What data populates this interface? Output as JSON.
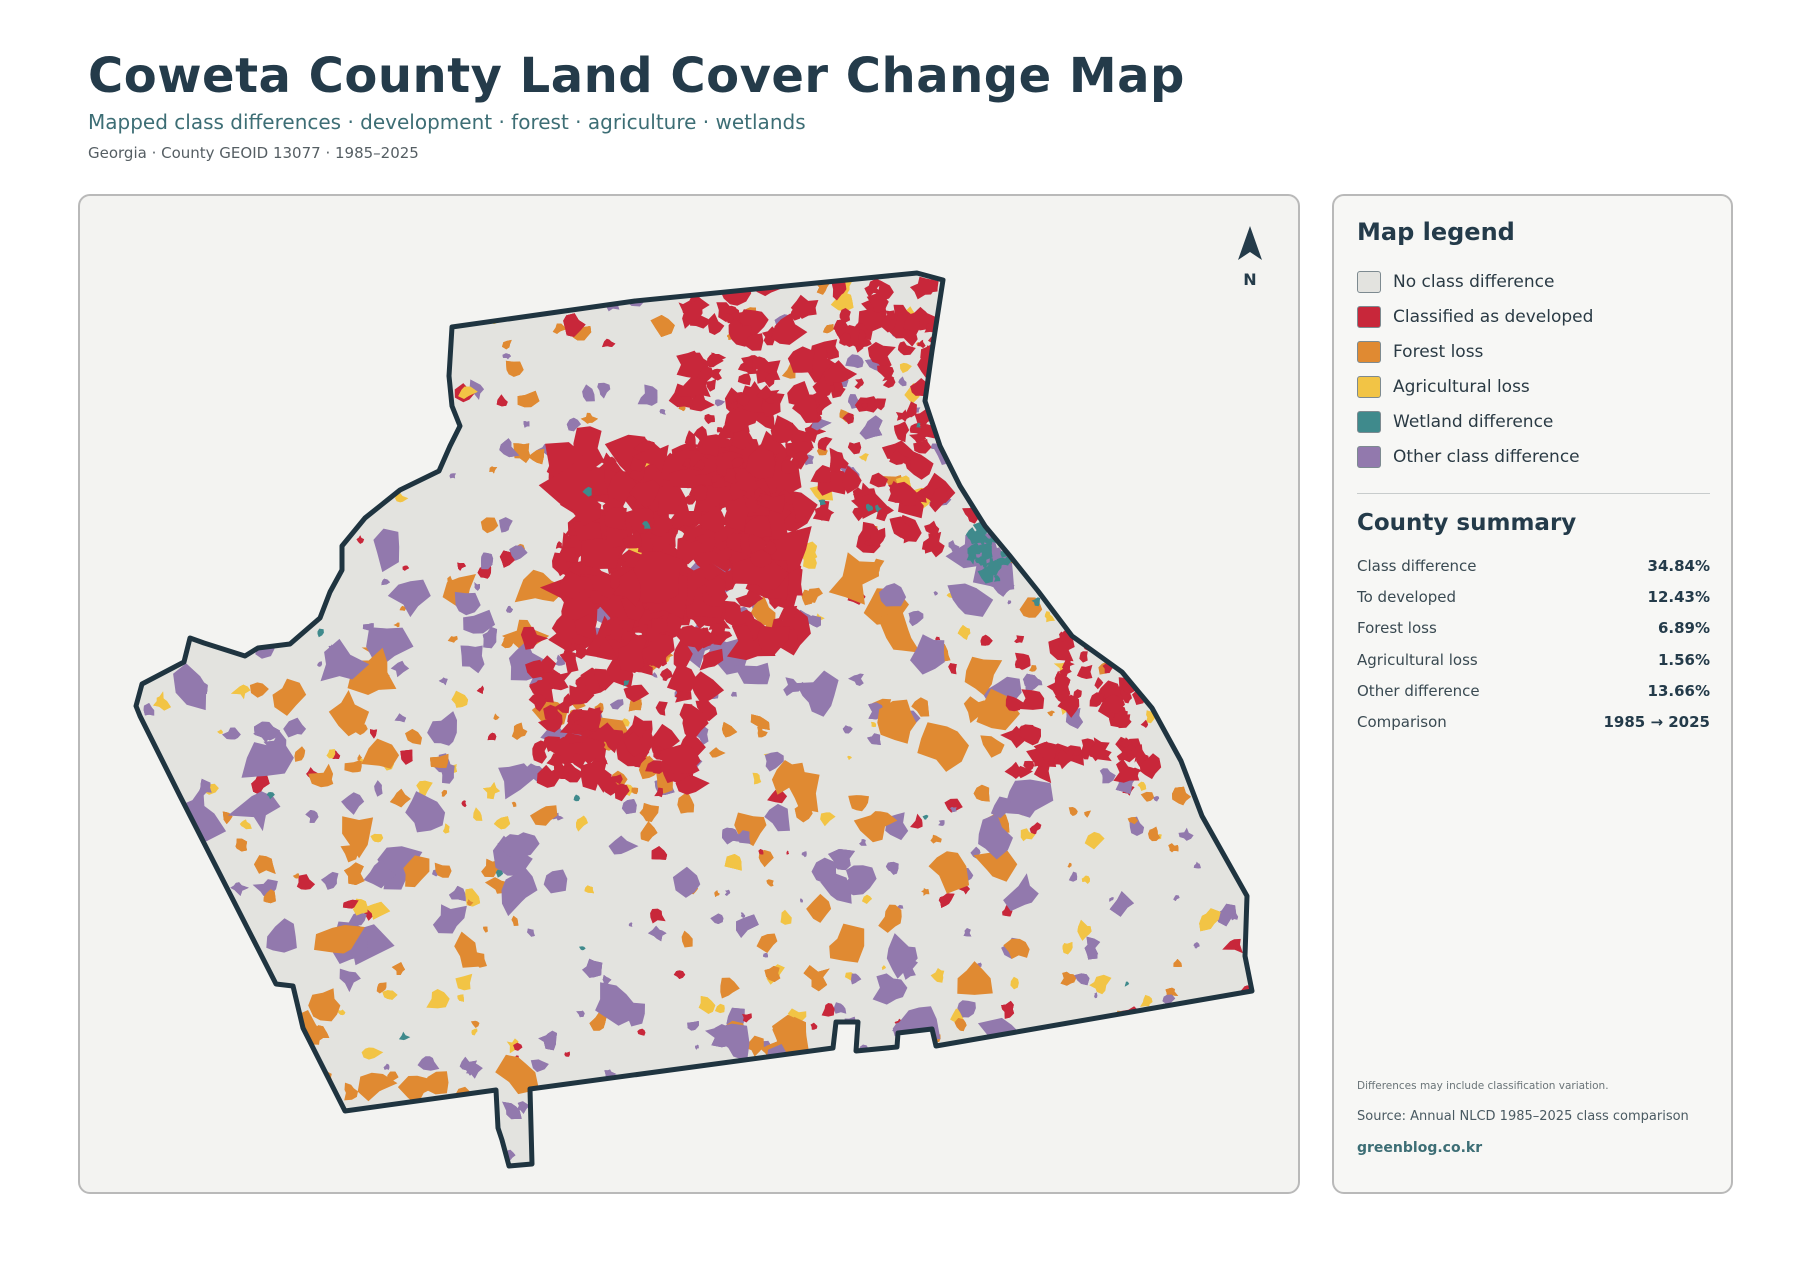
{
  "header": {
    "title": "Coweta County Land Cover Change Map",
    "subtitle": "Mapped class differences · development · forest · agriculture · wetlands",
    "meta": "Georgia · County GEOID 13077 · 1985–2025"
  },
  "map": {
    "north_label": "N",
    "classes": [
      {
        "key": "none",
        "color": "#e3e3df"
      },
      {
        "key": "developed",
        "color": "#c8273a"
      },
      {
        "key": "forest",
        "color": "#e08a32"
      },
      {
        "key": "agri",
        "color": "#f2c445"
      },
      {
        "key": "wetland",
        "color": "#3f8a8c"
      },
      {
        "key": "other",
        "color": "#9279ad"
      }
    ],
    "outline_color": "#1f3440"
  },
  "legend": {
    "title": "Map legend",
    "items": [
      {
        "label": "No class difference",
        "color": "#e3e3df"
      },
      {
        "label": "Classified as developed",
        "color": "#c8273a"
      },
      {
        "label": "Forest loss",
        "color": "#e08a32"
      },
      {
        "label": "Agricultural loss",
        "color": "#f2c445"
      },
      {
        "label": "Wetland difference",
        "color": "#3f8a8c"
      },
      {
        "label": "Other class difference",
        "color": "#9279ad"
      }
    ]
  },
  "summary": {
    "title": "County summary",
    "rows": [
      {
        "key": "Class difference",
        "value": "34.84%"
      },
      {
        "key": "To developed",
        "value": "12.43%"
      },
      {
        "key": "Forest loss",
        "value": "6.89%"
      },
      {
        "key": "Agricultural loss",
        "value": "1.56%"
      },
      {
        "key": "Other difference",
        "value": "13.66%"
      },
      {
        "key": "Comparison",
        "value": "1985 → 2025"
      }
    ]
  },
  "footer": {
    "note": "Differences may include classification variation.",
    "source": "Source: Annual NLCD 1985–2025 class comparison",
    "brand": "greenblog.co.kr"
  }
}
